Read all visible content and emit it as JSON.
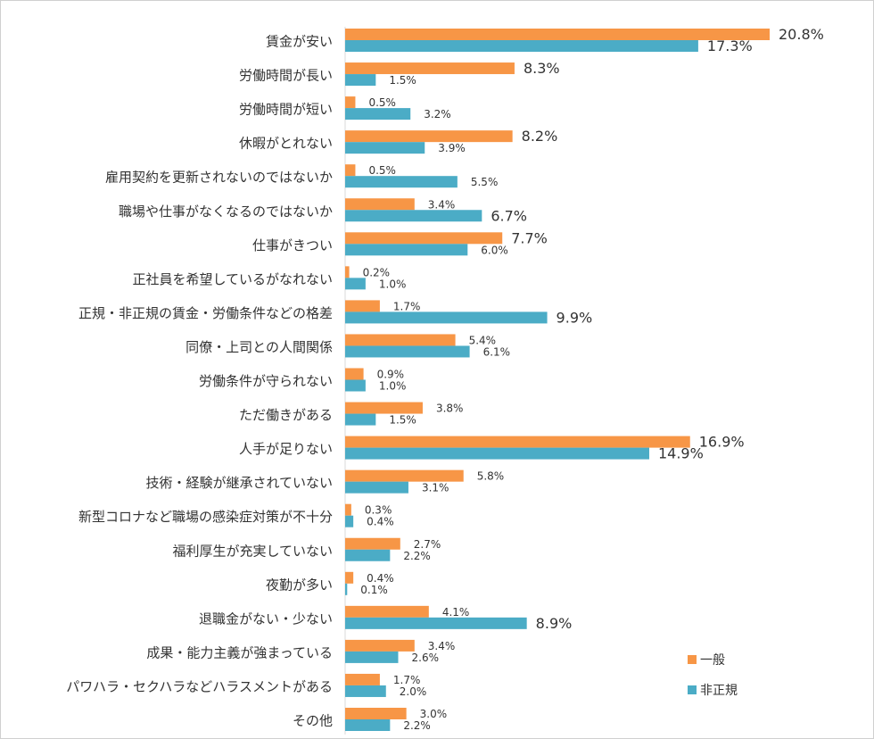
{
  "chart_data": {
    "type": "bar",
    "orientation": "horizontal",
    "categories": [
      "賃金が安い",
      "労働時間が長い",
      "労働時間が短い",
      "休暇がとれない",
      "雇用契約を更新されないのではないか",
      "職場や仕事がなくなるのではないか",
      "仕事がきつい",
      "正社員を希望しているがなれない",
      "正規・非正規の賃金・労働条件などの格差",
      "同僚・上司との人間関係",
      "労働条件が守られない",
      "ただ働きがある",
      "人手が足りない",
      "技術・経験が継承されていない",
      "新型コロナなど職場の感染症対策が不十分",
      "福利厚生が充実していない",
      "夜勤が多い",
      "退職金がない・少ない",
      "成果・能力主義が強まっている",
      "パワハラ・セクハラなどハラスメントがある",
      "その他"
    ],
    "series": [
      {
        "name": "一般",
        "color": "#F79646",
        "values": [
          20.8,
          8.3,
          0.5,
          8.2,
          0.5,
          3.4,
          7.7,
          0.2,
          1.7,
          5.4,
          0.9,
          3.8,
          16.9,
          5.8,
          0.3,
          2.7,
          0.4,
          4.1,
          3.4,
          1.7,
          3.0
        ],
        "labels": [
          "20.8%",
          "8.3%",
          "0.5%",
          "8.2%",
          "0.5%",
          "3.4%",
          "7.7%",
          "0.2%",
          "1.7%",
          "5.4%",
          "0.9%",
          "3.8%",
          "16.9%",
          "5.8%",
          "0.3%",
          "2.7%",
          "0.4%",
          "4.1%",
          "3.4%",
          "1.7%",
          "3.0%"
        ]
      },
      {
        "name": "非正規",
        "color": "#4BACC6",
        "values": [
          17.3,
          1.5,
          3.2,
          3.9,
          5.5,
          6.7,
          6.0,
          1.0,
          9.9,
          6.1,
          1.0,
          1.5,
          14.9,
          3.1,
          0.4,
          2.2,
          0.1,
          8.9,
          2.6,
          2.0,
          2.2
        ],
        "labels": [
          "17.3%",
          "1.5%",
          "3.2%",
          "3.9%",
          "5.5%",
          "6.7%",
          "6.0%",
          "1.0%",
          "9.9%",
          "6.1%",
          "1.0%",
          "1.5%",
          "14.9%",
          "3.1%",
          "0.4%",
          "2.2%",
          "0.1%",
          "8.9%",
          "2.6%",
          "2.0%",
          "2.2%"
        ]
      }
    ],
    "xlim": [
      0,
      21
    ],
    "grid": false,
    "legend_position": "bottom-right",
    "axis_line_color": "#D9D9D9"
  }
}
